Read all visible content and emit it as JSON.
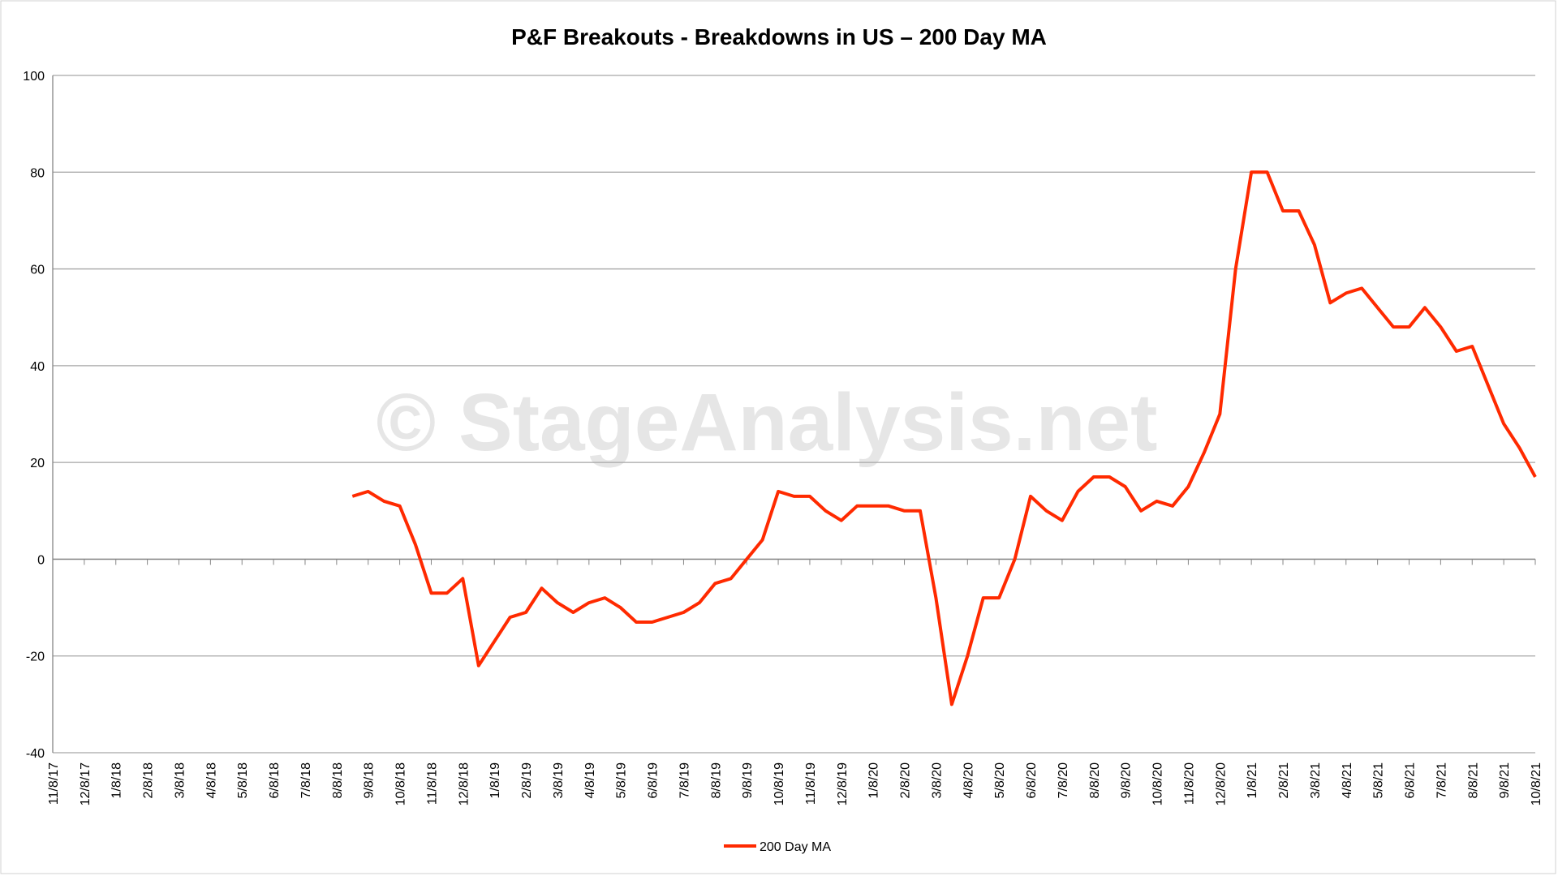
{
  "chart_data": {
    "type": "line",
    "title": "P&F Breakouts - Breakdowns in US – 200 Day MA",
    "watermark": "© StageAnalysis.net",
    "categories": [
      "11/8/17",
      null,
      "12/8/17",
      null,
      "1/8/18",
      null,
      "2/8/18",
      null,
      "3/8/18",
      null,
      "4/8/18",
      null,
      "5/8/18",
      null,
      "6/8/18",
      null,
      "7/8/18",
      null,
      "8/8/18",
      null,
      "9/8/18",
      null,
      "10/8/18",
      null,
      "11/8/18",
      null,
      "12/8/18",
      null,
      "1/8/19",
      null,
      "2/8/19",
      null,
      "3/8/19",
      null,
      "4/8/19",
      null,
      "5/8/19",
      null,
      "6/8/19",
      null,
      "7/8/19",
      null,
      "8/8/19",
      null,
      "9/8/19",
      null,
      "10/8/19",
      null,
      "11/8/19",
      null,
      "12/8/19",
      null,
      "1/8/20",
      null,
      "2/8/20",
      null,
      "3/8/20",
      null,
      "4/8/20",
      null,
      "5/8/20",
      null,
      "6/8/20",
      null,
      "7/8/20",
      null,
      "8/8/20",
      null,
      "9/8/20",
      null,
      "10/8/20",
      null,
      "11/8/20",
      null,
      "12/8/20",
      null,
      "1/8/21",
      null,
      "2/8/21",
      null,
      "3/8/21",
      null,
      "4/8/21",
      null,
      "5/8/21",
      null,
      "6/8/21",
      null,
      "7/8/21",
      null,
      "8/8/21",
      null,
      "9/8/21",
      null,
      "10/8/21"
    ],
    "series": [
      {
        "name": "200 Day MA",
        "color": "#ff2a00",
        "values": [
          null,
          null,
          null,
          null,
          null,
          null,
          null,
          null,
          null,
          null,
          null,
          null,
          null,
          null,
          null,
          null,
          null,
          null,
          null,
          13,
          14,
          12,
          11,
          3,
          -7,
          -7,
          -4,
          -22,
          -17,
          -12,
          -11,
          -6,
          -9,
          -11,
          -9,
          -8,
          -10,
          -13,
          -13,
          -12,
          -11,
          -9,
          -5,
          -4,
          0,
          4,
          14,
          13,
          13,
          10,
          8,
          11,
          11,
          11,
          10,
          10,
          -8,
          -30,
          -20,
          -8,
          -8,
          0,
          13,
          10,
          8,
          14,
          17,
          17,
          15,
          10,
          12,
          11,
          15,
          22,
          30,
          60,
          80,
          80,
          72,
          72,
          65,
          53,
          55,
          56,
          52,
          48,
          48,
          52,
          48,
          43,
          44,
          36,
          28,
          23,
          17
        ]
      }
    ],
    "ylim": [
      -40,
      100
    ],
    "yticks": [
      -40,
      -20,
      0,
      20,
      40,
      60,
      80,
      100
    ],
    "grid": true,
    "legend": "bottom"
  }
}
